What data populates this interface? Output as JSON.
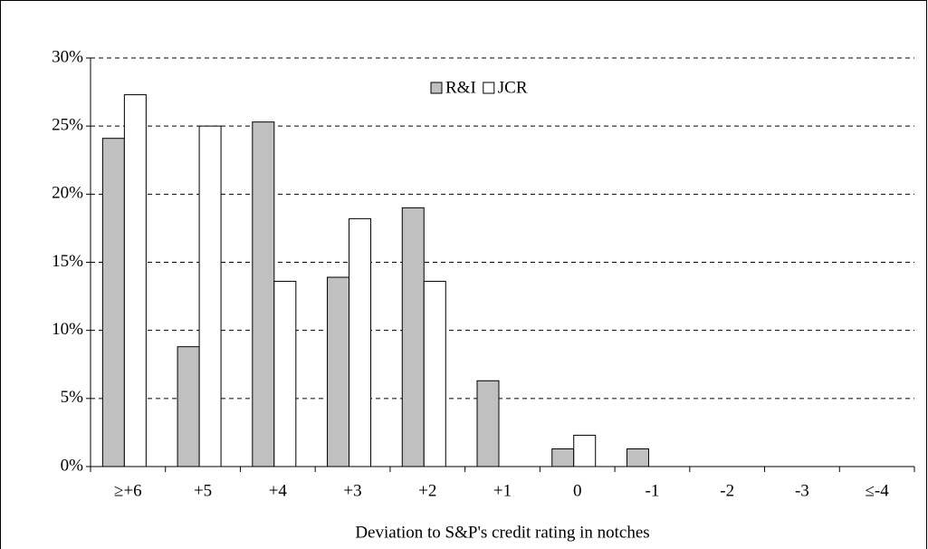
{
  "chart_data": {
    "type": "bar",
    "x_label": "Deviation to S&P's credit rating in notches",
    "categories": [
      "≥+6",
      "+5",
      "+4",
      "+3",
      "+2",
      "+1",
      "0",
      "-1",
      "-2",
      "-3",
      "≤-4"
    ],
    "series": [
      {
        "name": "R&I",
        "color": "#c0c0c0",
        "values": [
          24.1,
          8.8,
          25.3,
          13.9,
          19.0,
          6.3,
          1.3,
          1.3,
          0,
          0,
          0
        ]
      },
      {
        "name": "JCR",
        "color": "#ffffff",
        "values": [
          27.3,
          25.0,
          13.6,
          18.2,
          13.6,
          0,
          2.3,
          0,
          0,
          0,
          0
        ]
      }
    ],
    "ylim": [
      0,
      30
    ],
    "yticks": [
      {
        "value": 0,
        "label": "0%"
      },
      {
        "value": 5,
        "label": "5%"
      },
      {
        "value": 10,
        "label": "10%"
      },
      {
        "value": 15,
        "label": "15%"
      },
      {
        "value": 20,
        "label": "20%"
      },
      {
        "value": 25,
        "label": "25%"
      },
      {
        "value": 30,
        "label": "30%"
      }
    ],
    "grid": true
  }
}
